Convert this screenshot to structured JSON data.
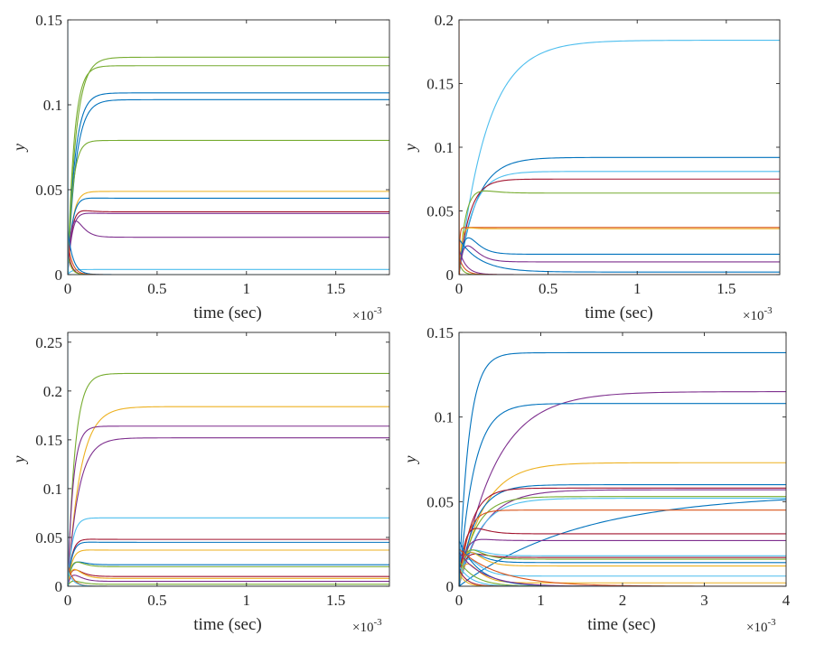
{
  "colors": {
    "blue": "#0072BD",
    "orange": "#D95319",
    "yellow": "#EDB120",
    "purple": "#7E2F8E",
    "green": "#77AC30",
    "cyan": "#4DBEEE",
    "maroon": "#A2142F",
    "axis": "#262626"
  },
  "chart_data": [
    {
      "type": "line",
      "xlabel": "time (sec)",
      "ylabel": "y",
      "x_exponent": "×10",
      "x_exponent_power": "-3",
      "xlim": [
        0,
        1.8
      ],
      "ylim": [
        0,
        0.15
      ],
      "xticks": [
        0,
        0.5,
        1,
        1.5
      ],
      "xtick_labels": [
        "0",
        "0.5",
        "1",
        "1.5"
      ],
      "yticks": [
        0,
        0.05,
        0.1,
        0.15
      ],
      "ytick_labels": [
        "0",
        "0.05",
        "0.1",
        "0.15"
      ],
      "series": [
        {
          "color": "green",
          "start": 0.0,
          "final": 0.128,
          "tau": 0.045
        },
        {
          "color": "green",
          "start": 0.0,
          "final": 0.123,
          "tau": 0.035
        },
        {
          "color": "blue",
          "start": 0.0,
          "final": 0.107,
          "tau": 0.04
        },
        {
          "color": "blue",
          "start": 0.0,
          "final": 0.103,
          "tau": 0.045
        },
        {
          "color": "green",
          "start": 0.0,
          "final": 0.079,
          "tau": 0.03,
          "overshoot": 0.002
        },
        {
          "color": "yellow",
          "start": 0.0,
          "final": 0.049,
          "tau": 0.03,
          "overshoot": 0.002
        },
        {
          "color": "blue",
          "start": 0.0,
          "final": 0.045,
          "tau": 0.03,
          "overshoot": 0.004
        },
        {
          "color": "maroon",
          "start": 0.0,
          "final": 0.037,
          "tau": 0.03,
          "overshoot": 0.006
        },
        {
          "color": "purple",
          "start": 0.0,
          "final": 0.036,
          "tau": 0.03,
          "overshoot": 0.004
        },
        {
          "color": "purple",
          "start": 0.0,
          "final": 0.022,
          "tau": 0.03,
          "overshoot": 0.016
        },
        {
          "color": "cyan",
          "start": 0.0,
          "final": 0.003,
          "tau": 0.02
        },
        {
          "color": "blue",
          "start": 0.026,
          "final": 0.0,
          "tau": 0.03
        },
        {
          "color": "orange",
          "start": 0.02,
          "final": 0.0,
          "tau": 0.025
        },
        {
          "color": "maroon",
          "start": 0.016,
          "final": 0.0,
          "tau": 0.02
        },
        {
          "color": "green",
          "start": 0.012,
          "final": 0.0,
          "tau": 0.02
        },
        {
          "color": "cyan",
          "start": 0.15,
          "final": 0.0,
          "tau": 0.0008
        }
      ]
    },
    {
      "type": "line",
      "xlabel": "time (sec)",
      "ylabel": "y",
      "x_exponent": "×10",
      "x_exponent_power": "-3",
      "xlim": [
        0,
        1.8
      ],
      "ylim": [
        0,
        0.2
      ],
      "xticks": [
        0,
        0.5,
        1,
        1.5
      ],
      "xtick_labels": [
        "0",
        "0.5",
        "1",
        "1.5"
      ],
      "yticks": [
        0,
        0.05,
        0.1,
        0.15,
        0.2
      ],
      "ytick_labels": [
        "0",
        "0.05",
        "0.1",
        "0.15",
        "0.2"
      ],
      "series": [
        {
          "color": "cyan",
          "start": 0.0,
          "final": 0.184,
          "tau": 0.16
        },
        {
          "color": "blue",
          "start": 0.0,
          "final": 0.092,
          "tau": 0.1
        },
        {
          "color": "cyan",
          "start": 0.0,
          "final": 0.081,
          "tau": 0.08
        },
        {
          "color": "maroon",
          "start": 0.0,
          "final": 0.075,
          "tau": 0.06
        },
        {
          "color": "green",
          "start": 0.0,
          "final": 0.064,
          "tau": 0.05,
          "overshoot": 0.012
        },
        {
          "color": "orange",
          "start": 0.0,
          "final": 0.037,
          "tau": 0.004
        },
        {
          "color": "yellow",
          "start": 0.0,
          "final": 0.036,
          "tau": 0.02,
          "overshoot": 0.006
        },
        {
          "color": "blue",
          "start": 0.0,
          "final": 0.016,
          "tau": 0.04,
          "overshoot": 0.018
        },
        {
          "color": "purple",
          "start": 0.0,
          "final": 0.01,
          "tau": 0.04,
          "overshoot": 0.016
        },
        {
          "color": "blue",
          "start": 0.028,
          "final": 0.002,
          "tau": 0.12
        },
        {
          "color": "purple",
          "start": 0.02,
          "final": 0.0,
          "tau": 0.04
        },
        {
          "color": "orange",
          "start": 0.014,
          "final": 0.0,
          "tau": 0.03
        },
        {
          "color": "green",
          "start": 0.01,
          "final": 0.0,
          "tau": 0.02
        },
        {
          "color": "orange",
          "start": 0.2,
          "final": 0.0,
          "tau": 0.0006
        }
      ]
    },
    {
      "type": "line",
      "xlabel": "time (sec)",
      "ylabel": "y",
      "x_exponent": "×10",
      "x_exponent_power": "-3",
      "xlim": [
        0,
        1.8
      ],
      "ylim": [
        0,
        0.26
      ],
      "xticks": [
        0,
        0.5,
        1,
        1.5
      ],
      "xtick_labels": [
        "0",
        "0.5",
        "1",
        "1.5"
      ],
      "yticks": [
        0,
        0.05,
        0.1,
        0.15,
        0.2,
        0.25
      ],
      "ytick_labels": [
        "0",
        "0.05",
        "0.1",
        "0.15",
        "0.2",
        "0.25"
      ],
      "series": [
        {
          "color": "green",
          "start": 0.0,
          "final": 0.218,
          "tau": 0.04
        },
        {
          "color": "yellow",
          "start": 0.0,
          "final": 0.184,
          "tau": 0.07
        },
        {
          "color": "purple",
          "start": 0.0,
          "final": 0.164,
          "tau": 0.03
        },
        {
          "color": "purple",
          "start": 0.0,
          "final": 0.152,
          "tau": 0.06
        },
        {
          "color": "cyan",
          "start": 0.0,
          "final": 0.07,
          "tau": 0.03,
          "overshoot": 0.004
        },
        {
          "color": "maroon",
          "start": 0.0,
          "final": 0.048,
          "tau": 0.03,
          "overshoot": 0.005
        },
        {
          "color": "blue",
          "start": 0.0,
          "final": 0.045,
          "tau": 0.03,
          "overshoot": 0.005
        },
        {
          "color": "yellow",
          "start": 0.0,
          "final": 0.037,
          "tau": 0.03,
          "overshoot": 0.004
        },
        {
          "color": "blue",
          "start": 0.0,
          "final": 0.022,
          "tau": 0.03,
          "overshoot": 0.008
        },
        {
          "color": "green",
          "start": 0.0,
          "final": 0.02,
          "tau": 0.03,
          "overshoot": 0.01
        },
        {
          "color": "maroon",
          "start": 0.0,
          "final": 0.01,
          "tau": 0.03,
          "overshoot": 0.01
        },
        {
          "color": "yellow",
          "start": 0.0,
          "final": 0.008,
          "tau": 0.03,
          "overshoot": 0.012
        },
        {
          "color": "purple",
          "start": 0.0,
          "final": 0.005,
          "tau": 0.03,
          "overshoot": 0.008
        },
        {
          "color": "green",
          "start": 0.0,
          "final": 0.002,
          "tau": 0.03,
          "overshoot": 0.004
        },
        {
          "color": "orange",
          "start": 0.022,
          "final": 0.0,
          "tau": 0.03
        },
        {
          "color": "cyan",
          "start": 0.016,
          "final": 0.0,
          "tau": 0.03
        },
        {
          "color": "cyan",
          "start": 0.26,
          "final": 0.0,
          "tau": 0.0006
        }
      ]
    },
    {
      "type": "line",
      "xlabel": "time (sec)",
      "ylabel": "y",
      "x_exponent": "×10",
      "x_exponent_power": "-3",
      "xlim": [
        0,
        4
      ],
      "ylim": [
        0,
        0.15
      ],
      "xticks": [
        0,
        1,
        2,
        3,
        4
      ],
      "xtick_labels": [
        "0",
        "1",
        "2",
        "3",
        "4"
      ],
      "yticks": [
        0,
        0.05,
        0.1,
        0.15
      ],
      "ytick_labels": [
        "0",
        "0.05",
        "0.1",
        "0.15"
      ],
      "series": [
        {
          "color": "blue",
          "start": 0.0,
          "final": 0.138,
          "tau": 0.12
        },
        {
          "color": "purple",
          "start": 0.0,
          "final": 0.115,
          "tau": 0.45
        },
        {
          "color": "blue",
          "start": 0.0,
          "final": 0.108,
          "tau": 0.18
        },
        {
          "color": "yellow",
          "start": 0.0,
          "final": 0.073,
          "tau": 0.3
        },
        {
          "color": "blue",
          "start": 0.0,
          "final": 0.06,
          "tau": 0.2
        },
        {
          "color": "maroon",
          "start": 0.0,
          "final": 0.058,
          "tau": 0.15
        },
        {
          "color": "purple",
          "start": 0.0,
          "final": 0.057,
          "tau": 0.3
        },
        {
          "color": "blue",
          "start": 0.0,
          "final": 0.055,
          "tau": 1.5
        },
        {
          "color": "green",
          "start": 0.0,
          "final": 0.053,
          "tau": 0.2
        },
        {
          "color": "cyan",
          "start": 0.0,
          "final": 0.052,
          "tau": 0.25
        },
        {
          "color": "orange",
          "start": 0.0,
          "final": 0.045,
          "tau": 0.1
        },
        {
          "color": "maroon",
          "start": 0.0,
          "final": 0.031,
          "tau": 0.1,
          "overshoot": 0.01
        },
        {
          "color": "purple",
          "start": 0.0,
          "final": 0.027,
          "tau": 0.1,
          "overshoot": 0.005
        },
        {
          "color": "cyan",
          "start": 0.0,
          "final": 0.018,
          "tau": 0.1,
          "overshoot": 0.008
        },
        {
          "color": "maroon",
          "start": 0.0,
          "final": 0.017,
          "tau": 0.1,
          "overshoot": 0.006
        },
        {
          "color": "green",
          "start": 0.0,
          "final": 0.016,
          "tau": 0.1,
          "overshoot": 0.01
        },
        {
          "color": "blue",
          "start": 0.0,
          "final": 0.014,
          "tau": 0.1,
          "overshoot": 0.01
        },
        {
          "color": "yellow",
          "start": 0.0,
          "final": 0.012,
          "tau": 0.1,
          "overshoot": 0.012
        },
        {
          "color": "cyan",
          "start": 0.0,
          "final": 0.006,
          "tau": 0.1,
          "overshoot": 0.012
        },
        {
          "color": "yellow",
          "start": 0.0,
          "final": 0.002,
          "tau": 0.1,
          "overshoot": 0.012
        },
        {
          "color": "blue",
          "start": 0.027,
          "final": 0.0,
          "tau": 0.25
        },
        {
          "color": "orange",
          "start": 0.022,
          "final": 0.0,
          "tau": 0.5
        },
        {
          "color": "purple",
          "start": 0.02,
          "final": 0.0,
          "tau": 0.3
        },
        {
          "color": "green",
          "start": 0.015,
          "final": 0.0,
          "tau": 0.2
        },
        {
          "color": "cyan",
          "start": 0.012,
          "final": 0.0,
          "tau": 0.15
        },
        {
          "color": "maroon",
          "start": 0.01,
          "final": 0.0,
          "tau": 0.1
        },
        {
          "color": "yellow",
          "start": 0.008,
          "final": 0.0,
          "tau": 0.08
        },
        {
          "color": "blue",
          "start": 0.15,
          "final": 0.0,
          "tau": 0.002
        }
      ]
    }
  ]
}
